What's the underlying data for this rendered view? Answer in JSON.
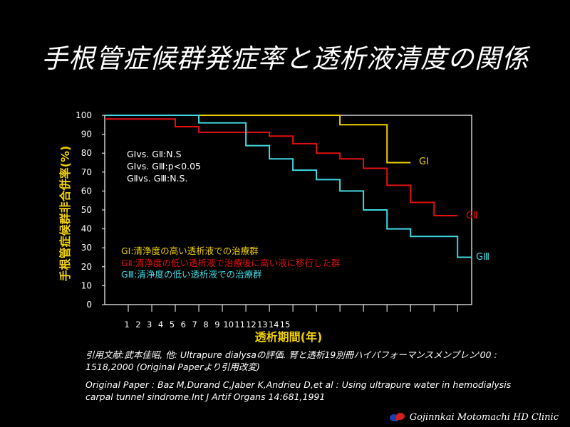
{
  "title": "手根管症候群発症率と透析液清度の関係",
  "chart_data": {
    "type": "line",
    "step": true,
    "ylabel": "手根管症候群非合併率(%)",
    "xlabel": "透析期間(年)",
    "ylim": [
      0,
      100
    ],
    "yticks": [
      0,
      10,
      20,
      30,
      40,
      50,
      60,
      70,
      80,
      90,
      100
    ],
    "xlim": [
      0,
      15
    ],
    "xtick_labels": [
      "1",
      "2",
      "3",
      "4",
      "5",
      "6",
      "7",
      "8",
      "9",
      "10",
      "11",
      "12",
      "13",
      "14",
      "15"
    ],
    "series": [
      {
        "name": "GⅠ",
        "color": "#f0d000",
        "x": [
          0,
          10,
          10,
          12,
          12,
          13
        ],
        "y": [
          100,
          100,
          95,
          95,
          75,
          75
        ]
      },
      {
        "name": "GⅡ",
        "color": "#e01010",
        "x": [
          0,
          3,
          3,
          4,
          4,
          7,
          7,
          8,
          8,
          9,
          9,
          10,
          10,
          11,
          11,
          12,
          12,
          13,
          13,
          14,
          14,
          15
        ],
        "y": [
          98,
          98,
          94,
          94,
          91,
          91,
          89,
          89,
          85,
          85,
          80,
          80,
          77,
          77,
          72,
          72,
          63,
          63,
          54,
          54,
          47,
          47
        ]
      },
      {
        "name": "GⅢ",
        "color": "#40d8e0",
        "x": [
          0,
          4,
          4,
          6,
          6,
          7,
          7,
          8,
          8,
          9,
          9,
          10,
          10,
          11,
          11,
          12,
          12,
          13,
          13,
          15,
          15,
          15.6
        ],
        "y": [
          100,
          100,
          96,
          96,
          84,
          84,
          77,
          77,
          71,
          71,
          66,
          66,
          60,
          60,
          50,
          50,
          40,
          40,
          36,
          36,
          25,
          25
        ]
      }
    ],
    "group_labels": [
      "GⅠ",
      "GⅡ",
      "GⅢ"
    ],
    "stats": [
      "GⅠvs. GⅡ:N.S",
      "GⅠvs. GⅢ:p<0.05",
      "GⅡvs. GⅢ:N.S."
    ],
    "legend": [
      {
        "text": "GⅠ:清浄度の高い透析液での治療群",
        "color": "#f0d000"
      },
      {
        "text": "GⅡ:清浄度の低い透析液で治療後に高い液に移行した群",
        "color": "#e01010"
      },
      {
        "text": "GⅢ:清浄度の低い透析液での治療群",
        "color": "#40d8e0"
      }
    ]
  },
  "references": [
    "引用文献:武本佳昭, 他: Ultrapure dialysaの評価. 腎と透析19別冊ハイパフォーマンスメンブレン'00 : 1518,2000 (Original Paperより引用改変)",
    "Original Paper : Baz M,Durand C,Jaber K,Andrieu D,et al : Using ultrapure water in hemodialysis carpal tunnel sindrome.Int J Artif Organs 14:681,1991"
  ],
  "footer": "Gojinnkai Motomachi HD Clinic"
}
